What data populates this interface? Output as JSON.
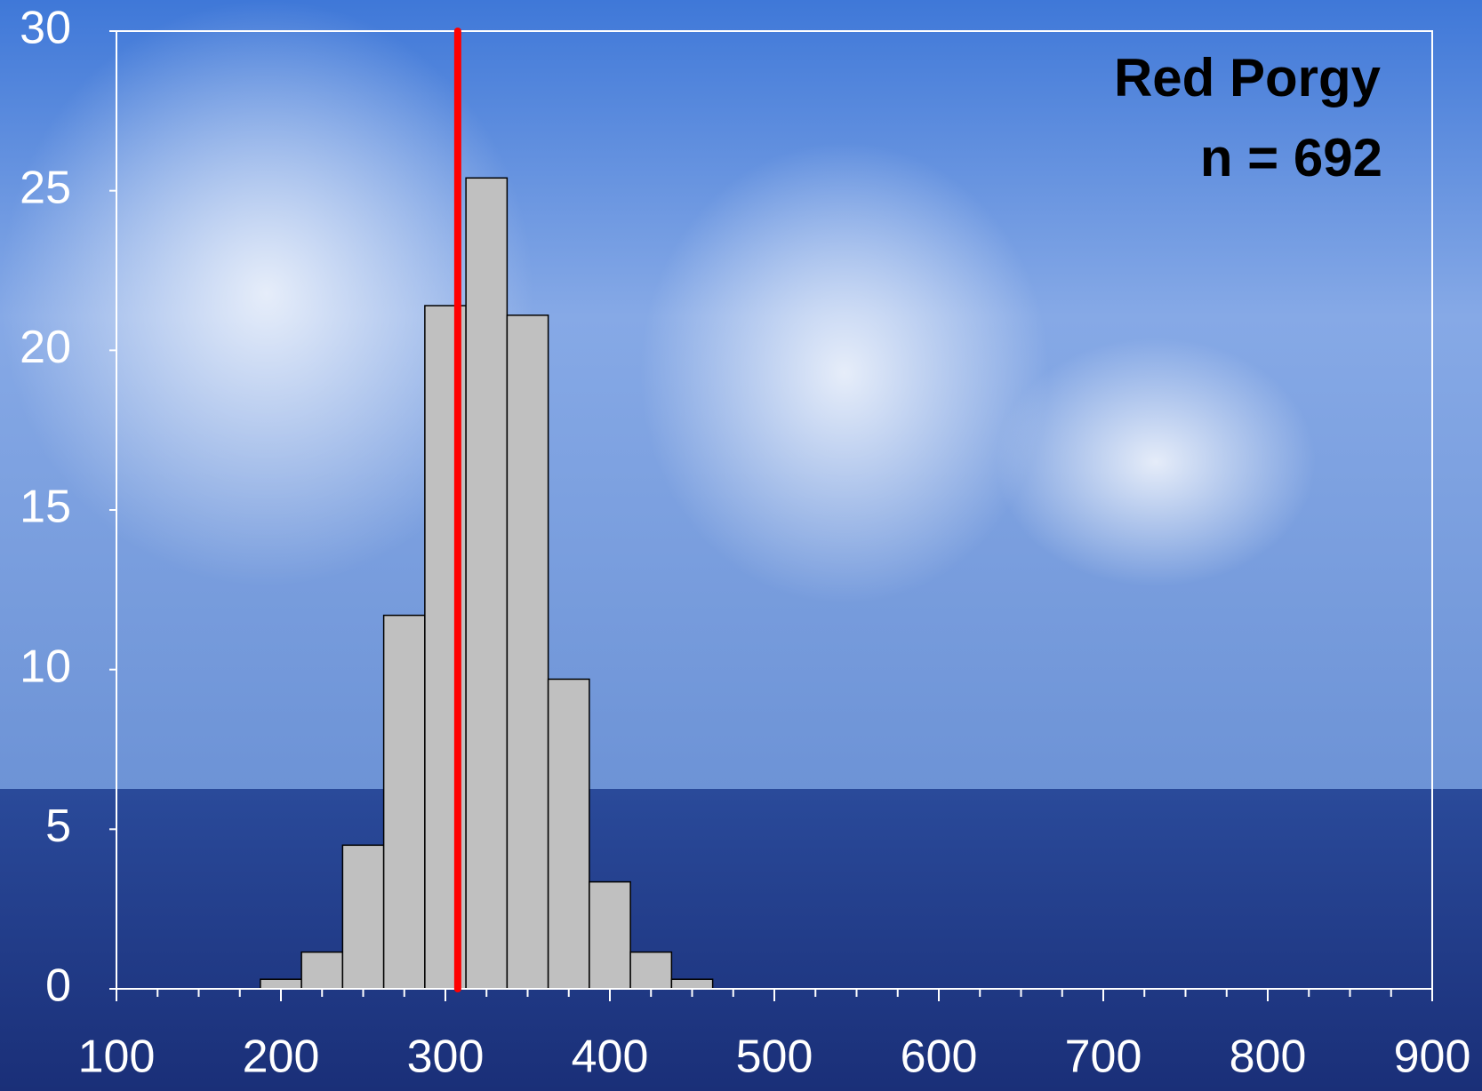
{
  "chart_data": {
    "type": "histogram",
    "annotations": [
      "Red Porgy",
      "n = 692"
    ],
    "bins": [
      187.5,
      212.5,
      237.5,
      262.5,
      287.5,
      312.5,
      337.5,
      362.5,
      387.5,
      412.5,
      437.5,
      462.5
    ],
    "values": [
      0.3,
      1.15,
      4.5,
      11.7,
      21.4,
      25.4,
      21.1,
      9.7,
      3.35,
      1.15,
      0.3
    ],
    "color": "#c0c0c0",
    "vline": 307.5,
    "vline_color": "#ff0000",
    "xlim": [
      100,
      900
    ],
    "xticks": [
      100,
      200,
      300,
      400,
      500,
      600,
      700,
      800,
      900
    ],
    "ylim": [
      0,
      30
    ],
    "yticks": [
      0,
      5,
      10,
      15,
      20,
      25,
      30
    ]
  }
}
